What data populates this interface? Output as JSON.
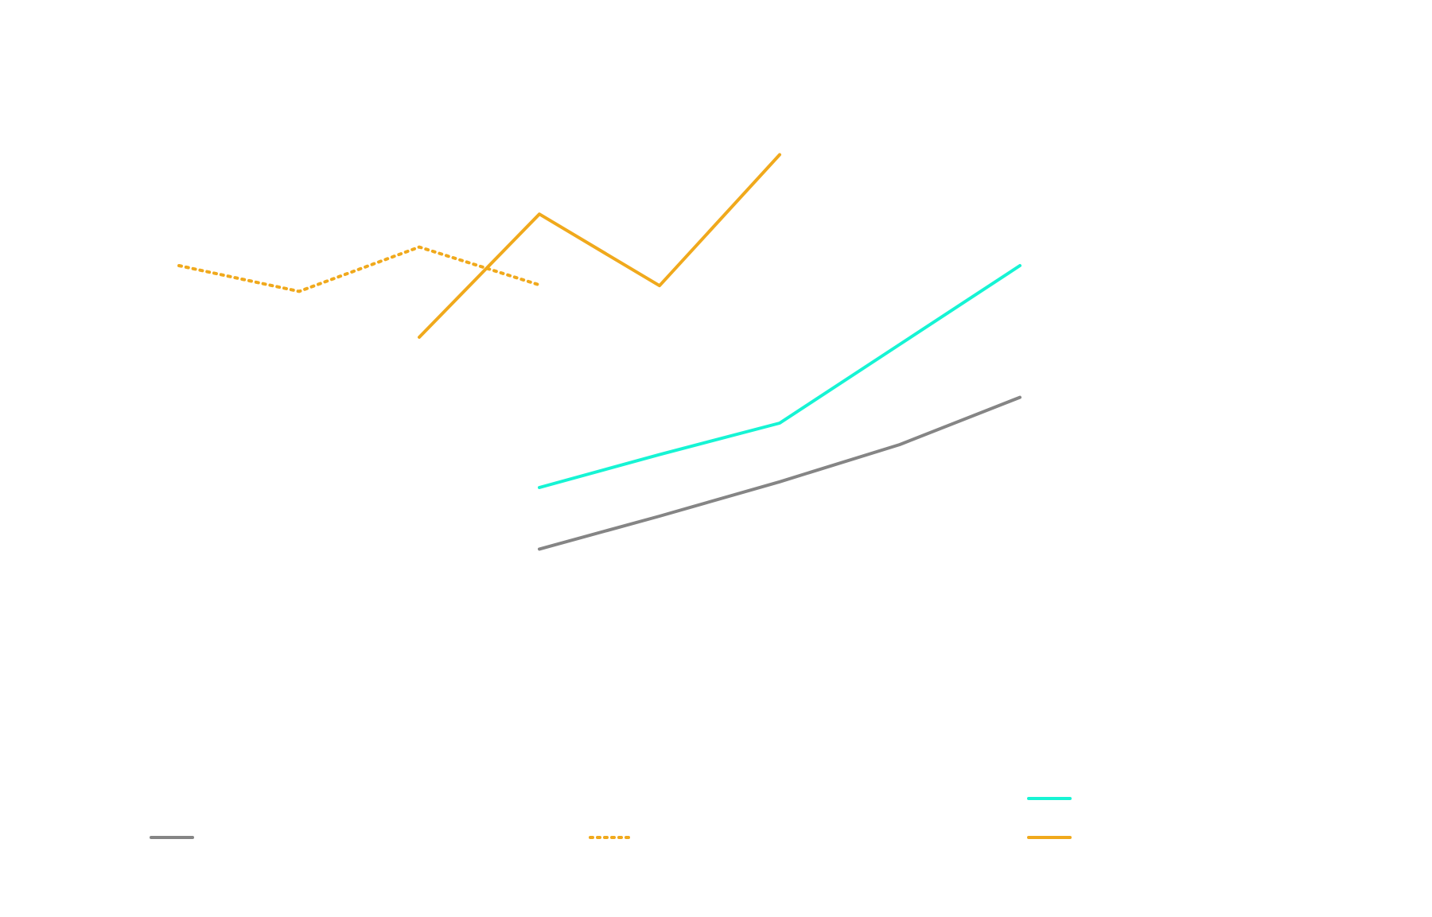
{
  "chart_data": {
    "type": "line",
    "x": [
      0,
      1,
      2,
      3,
      4,
      5,
      6,
      7
    ],
    "xlim": [
      -0.5,
      8.8
    ],
    "ylim": [
      0,
      100
    ],
    "grid": false,
    "legend_placement": "bottom",
    "series": [
      {
        "key": "gray_solid",
        "color": "#858585",
        "dash": "solid",
        "points": [
          [
            3,
            34.4
          ],
          [
            4,
            39.0
          ],
          [
            5,
            43.8
          ],
          [
            6,
            49.0
          ],
          [
            7,
            55.6
          ]
        ]
      },
      {
        "key": "cyan_solid",
        "color": "#16f4d4",
        "dash": "solid",
        "points": [
          [
            3,
            43.0
          ],
          [
            4,
            47.6
          ],
          [
            5,
            52.0
          ],
          [
            6,
            63.0
          ],
          [
            7,
            74.0
          ]
        ]
      },
      {
        "key": "orange_dotted",
        "color": "#f0a91c",
        "dash": "dotted",
        "points": [
          [
            0,
            74.0
          ],
          [
            1,
            70.4
          ],
          [
            2,
            76.6
          ],
          [
            3,
            71.3
          ]
        ]
      },
      {
        "key": "orange_solid",
        "color": "#f0a91c",
        "dash": "solid",
        "points": [
          [
            2,
            64.0
          ],
          [
            3,
            81.2
          ],
          [
            4,
            71.2
          ],
          [
            5,
            89.5
          ]
        ]
      }
    ],
    "legend": [
      {
        "series": "gray_solid"
      },
      {
        "series": "orange_dotted"
      },
      {
        "series": "cyan_solid"
      },
      {
        "series": "orange_solid"
      }
    ]
  }
}
